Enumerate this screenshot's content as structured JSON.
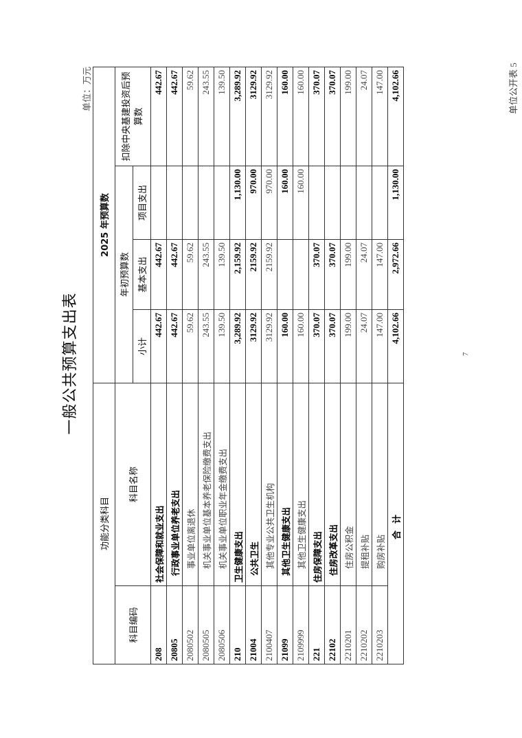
{
  "form_no": "单位公开表 5",
  "title": "一般公共预算支出表",
  "unit": "单位：万元",
  "page_number": "7",
  "header": {
    "functional_category": "功能分类科目",
    "code": "科目编码",
    "name": "科目名称",
    "budget_2025": "2025 年预算数",
    "initial_budget": "年初预算数",
    "subtotal": "小计",
    "basic": "基本支出",
    "project": "项目支出",
    "excl_central": "扣除中央基建投资后预算数"
  },
  "rows": [
    {
      "code": "208",
      "name": "社会保障和就业支出",
      "level": 0,
      "subtotal": "442.67",
      "basic": "442.67",
      "project": "",
      "excl": "442.67"
    },
    {
      "code": "20805",
      "name": "行政事业单位养老支出",
      "level": 1,
      "subtotal": "442.67",
      "basic": "442.67",
      "project": "",
      "excl": "442.67"
    },
    {
      "code": "2080502",
      "name": "事业单位离退休",
      "level": 2,
      "subtotal": "59.62",
      "basic": "59.62",
      "project": "",
      "excl": "59.62"
    },
    {
      "code": "2080505",
      "name": "机关事业单位基本养老保险缴费支出",
      "level": 2,
      "subtotal": "243.55",
      "basic": "243.55",
      "project": "",
      "excl": "243.55"
    },
    {
      "code": "2080506",
      "name": "机关事业单位职业年金缴费支出",
      "level": 2,
      "subtotal": "139.50",
      "basic": "139.50",
      "project": "",
      "excl": "139.50"
    },
    {
      "code": "210",
      "name": "卫生健康支出",
      "level": 0,
      "subtotal": "3,289.92",
      "basic": "2,159.92",
      "project": "1,130.00",
      "excl": "3,289.92"
    },
    {
      "code": "21004",
      "name": "公共卫生",
      "level": 1,
      "subtotal": "3129.92",
      "basic": "2159.92",
      "project": "970.00",
      "excl": "3129.92"
    },
    {
      "code": "2100407",
      "name": "其他专业公共卫生机构",
      "level": 2,
      "subtotal": "3129.92",
      "basic": "2159.92",
      "project": "970.00",
      "excl": "3129.92"
    },
    {
      "code": "21099",
      "name": "其他卫生健康支出",
      "level": 1,
      "subtotal": "160.00",
      "basic": "",
      "project": "160.00",
      "excl": "160.00"
    },
    {
      "code": "2109999",
      "name": "其他卫生健康支出",
      "level": 2,
      "subtotal": "160.00",
      "basic": "",
      "project": "160.00",
      "excl": "160.00"
    },
    {
      "code": "221",
      "name": "住房保障支出",
      "level": 0,
      "subtotal": "370.07",
      "basic": "370.07",
      "project": "",
      "excl": "370.07"
    },
    {
      "code": "22102",
      "name": "住房改革支出",
      "level": 1,
      "subtotal": "370.07",
      "basic": "370.07",
      "project": "",
      "excl": "370.07"
    },
    {
      "code": "2210201",
      "name": "住房公积金",
      "level": 2,
      "subtotal": "199.00",
      "basic": "199.00",
      "project": "",
      "excl": "199.00"
    },
    {
      "code": "2210202",
      "name": "提租补贴",
      "level": 2,
      "subtotal": "24.07",
      "basic": "24.07",
      "project": "",
      "excl": "24.07"
    },
    {
      "code": "2210203",
      "name": "购房补贴",
      "level": 2,
      "subtotal": "147.00",
      "basic": "147.00",
      "project": "",
      "excl": "147.00"
    }
  ],
  "total": {
    "label": "合计",
    "subtotal": "4,102.66",
    "basic": "2,972.66",
    "project": "1,130.00",
    "excl": "4,102.66"
  }
}
